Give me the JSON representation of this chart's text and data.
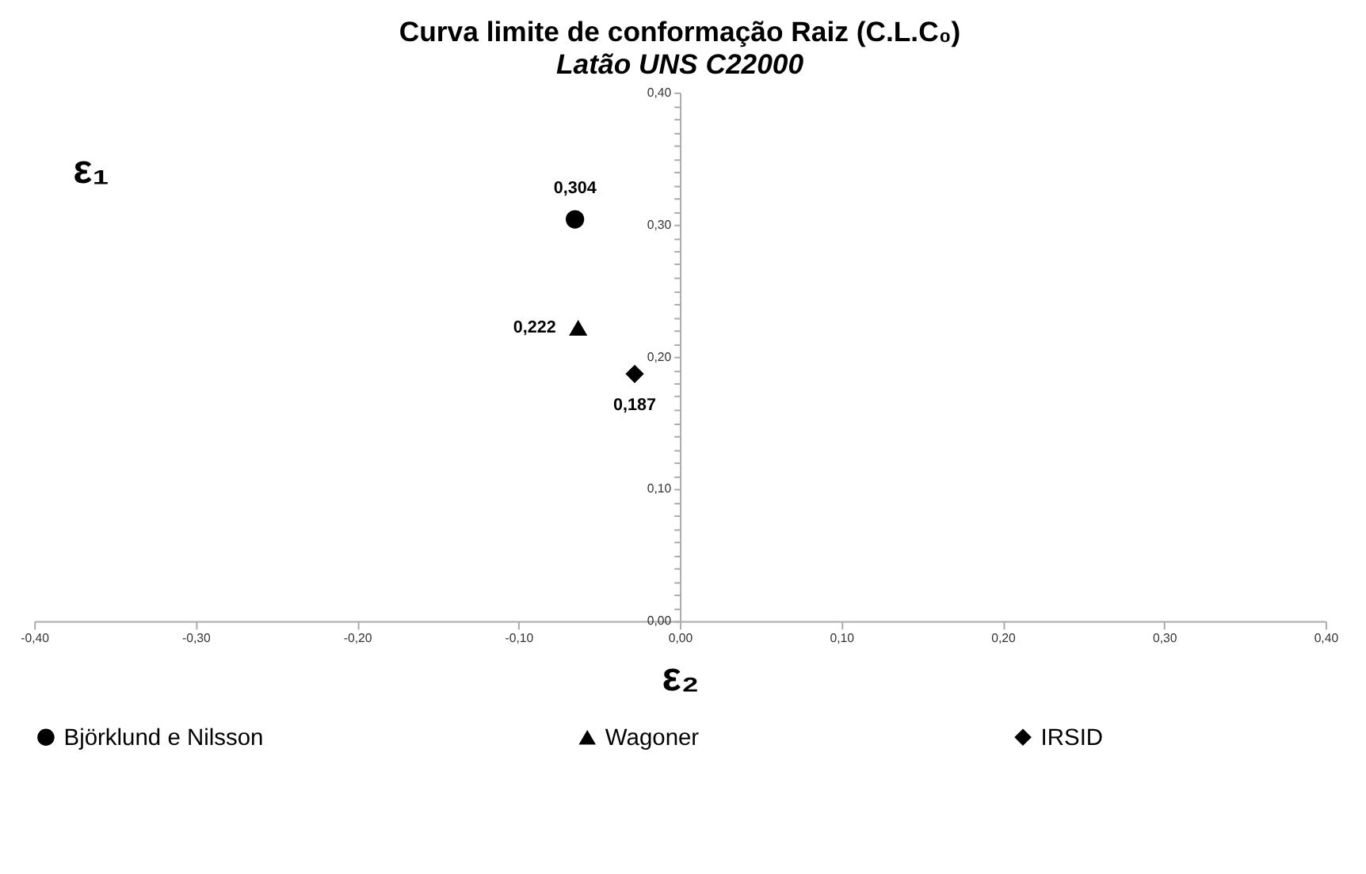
{
  "chart_data": {
    "type": "scatter",
    "title": "Curva limite de conformação Raiz (C.L.C₀)",
    "subtitle": "Latão UNS C22000",
    "xlabel": "ε₂",
    "ylabel": "ε₁",
    "series": [
      {
        "name": "Björklund e Nilsson",
        "color": "#000000",
        "marker": "circle",
        "x": [
          -0.065
        ],
        "values": [
          0.304
        ],
        "value_labels": [
          "0,304"
        ]
      },
      {
        "name": "Wagoner",
        "color": "#000000",
        "marker": "triangle",
        "x": [
          -0.063
        ],
        "values": [
          0.222
        ],
        "value_labels": [
          "0,222"
        ]
      },
      {
        "name": "IRSID",
        "color": "#000000",
        "marker": "diamond",
        "x": [
          -0.028
        ],
        "values": [
          0.187
        ],
        "value_labels": [
          "0,187"
        ]
      }
    ],
    "xlim": [
      -0.4,
      0.4
    ],
    "ylim": [
      0,
      0.4
    ],
    "xticks": [
      {
        "value": -0.4,
        "label": "-0,40"
      },
      {
        "value": -0.3,
        "label": "-0,30"
      },
      {
        "value": -0.2,
        "label": "-0,20"
      },
      {
        "value": -0.1,
        "label": "-0,10"
      },
      {
        "value": 0,
        "label": "0,00"
      },
      {
        "value": 0.1,
        "label": "0,10"
      },
      {
        "value": 0.2,
        "label": "0,20"
      },
      {
        "value": 0.3,
        "label": "0,30"
      },
      {
        "value": 0.4,
        "label": "0,40"
      }
    ],
    "yticks": [
      {
        "value": 0,
        "label": "0,00"
      },
      {
        "value": 0.01,
        "label": null
      },
      {
        "value": 0.02,
        "label": null
      },
      {
        "value": 0.03,
        "label": null
      },
      {
        "value": 0.04,
        "label": null
      },
      {
        "value": 0.05,
        "label": null
      },
      {
        "value": 0.06,
        "label": null
      },
      {
        "value": 0.07,
        "label": null
      },
      {
        "value": 0.08,
        "label": null
      },
      {
        "value": 0.09,
        "label": null
      },
      {
        "value": 0.1,
        "label": "0,10"
      },
      {
        "value": 0.11,
        "label": null
      },
      {
        "value": 0.12,
        "label": null
      },
      {
        "value": 0.13,
        "label": null
      },
      {
        "value": 0.14,
        "label": null
      },
      {
        "value": 0.15,
        "label": null
      },
      {
        "value": 0.16,
        "label": null
      },
      {
        "value": 0.17,
        "label": null
      },
      {
        "value": 0.18,
        "label": null
      },
      {
        "value": 0.19,
        "label": null
      },
      {
        "value": 0.2,
        "label": "0,20"
      },
      {
        "value": 0.21,
        "label": null
      },
      {
        "value": 0.22,
        "label": null
      },
      {
        "value": 0.23,
        "label": null
      },
      {
        "value": 0.24,
        "label": null
      },
      {
        "value": 0.25,
        "label": null
      },
      {
        "value": 0.26,
        "label": null
      },
      {
        "value": 0.27,
        "label": null
      },
      {
        "value": 0.28,
        "label": null
      },
      {
        "value": 0.29,
        "label": null
      },
      {
        "value": 0.3,
        "label": "0,30"
      },
      {
        "value": 0.31,
        "label": null
      },
      {
        "value": 0.32,
        "label": null
      },
      {
        "value": 0.33,
        "label": null
      },
      {
        "value": 0.34,
        "label": null
      },
      {
        "value": 0.35,
        "label": null
      },
      {
        "value": 0.36,
        "label": null
      },
      {
        "value": 0.37,
        "label": null
      },
      {
        "value": 0.38,
        "label": null
      },
      {
        "value": 0.39,
        "label": null
      },
      {
        "value": 0.4,
        "label": "0,40"
      }
    ],
    "grid": false,
    "legend": "bottom"
  }
}
